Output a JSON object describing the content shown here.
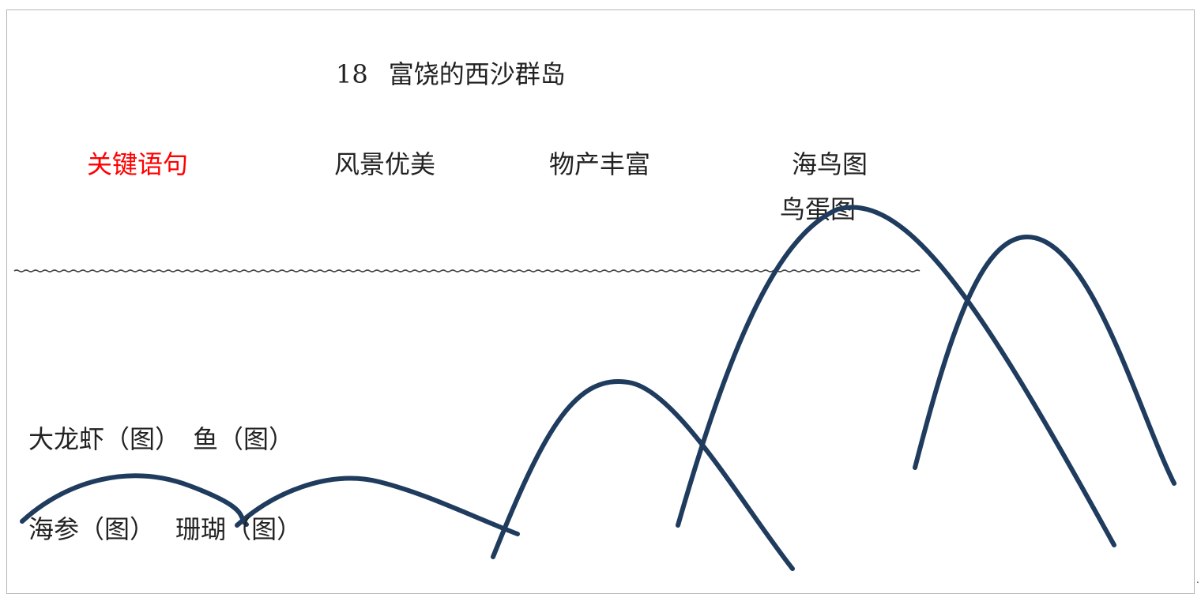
{
  "title": {
    "number": "18",
    "text": "富饶的西沙群岛"
  },
  "key_label": "关键语句",
  "key_label_color": "#ff0000",
  "categories": [
    "风景优美",
    "物产丰富",
    "海鸟图"
  ],
  "extra_label": "鸟蛋图",
  "items_row1": "大龙虾（图）　鱼（图）",
  "items_row2": "海参（图）　 珊瑚（图）",
  "curve_color": "#1f3c5e",
  "trailing_mark": "."
}
